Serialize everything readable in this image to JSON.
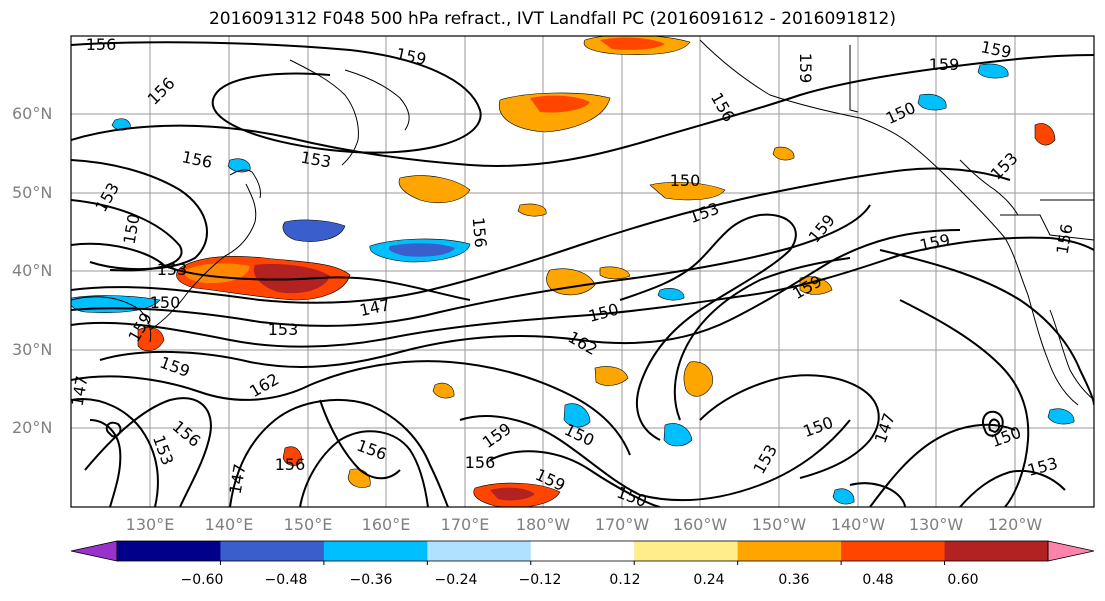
{
  "title": "2016091312 F048 500 hPa refract., IVT Landfall PC (2016091612 - 2016091812)",
  "lat_labels": [
    "60°N",
    "50°N",
    "40°N",
    "30°N",
    "20°N"
  ],
  "lon_labels": [
    "130°E",
    "140°E",
    "150°E",
    "160°E",
    "170°E",
    "180°W",
    "170°W",
    "160°W",
    "150°W",
    "140°W",
    "130°W",
    "120°W"
  ],
  "contour_labels": [
    "156",
    "159",
    "159",
    "159",
    "159",
    "156",
    "156",
    "150",
    "153",
    "156",
    "153",
    "150",
    "153",
    "150",
    "153",
    "156",
    "159",
    "156",
    "159",
    "153",
    "159",
    "150",
    "147",
    "150",
    "153",
    "159",
    "162",
    "159",
    "162",
    "147",
    "159",
    "156",
    "150",
    "153",
    "150",
    "156",
    "147",
    "150",
    "153",
    "147",
    "156",
    "156",
    "159",
    "150",
    "153"
  ],
  "colorbar": {
    "tick_labels": [
      "−0.60",
      "−0.48",
      "−0.36",
      "−0.24",
      "−0.12",
      "0.12",
      "0.24",
      "0.36",
      "0.48",
      "0.60"
    ],
    "colors": [
      "#9932cc",
      "#00008b",
      "#3a5fcd",
      "#00bfff",
      "#b0e2ff",
      "#ffffff",
      "#ffec8b",
      "#ffa500",
      "#ff4500",
      "#b22222",
      "#ff82ab"
    ]
  }
}
